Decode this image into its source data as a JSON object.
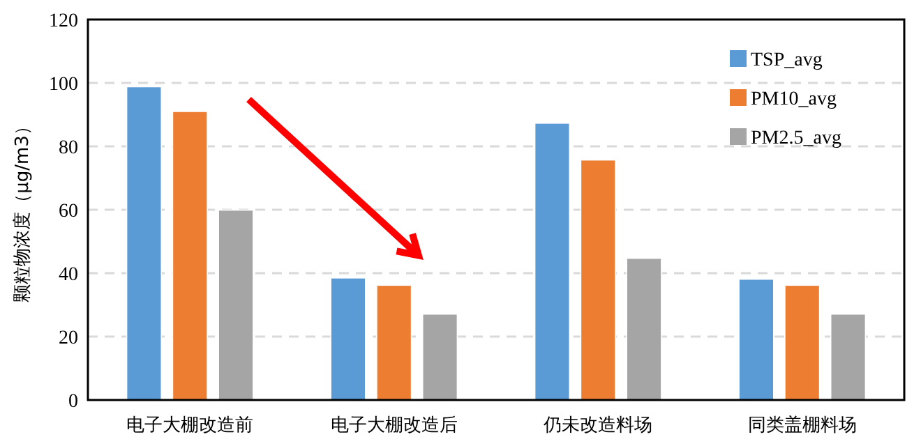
{
  "chart_data": {
    "type": "bar",
    "ylabel": "颗粒物浓度（μg/m3）",
    "categories": [
      "电子大棚改造前",
      "电子大棚改造后",
      "仍未改造料场",
      "同类盖棚料场"
    ],
    "series": [
      {
        "name": "TSP_avg",
        "color": "#5b9bd5",
        "values": [
          98.8,
          38.5,
          87.3,
          38.1
        ]
      },
      {
        "name": "PM10_avg",
        "color": "#ed7d31",
        "values": [
          91,
          36.2,
          75.7,
          36.2
        ]
      },
      {
        "name": "PM2.5_avg",
        "color": "#a5a5a5",
        "values": [
          59.9,
          27.1,
          44.7,
          27.1
        ]
      }
    ],
    "ylim": [
      0,
      120
    ],
    "yticks": [
      0,
      20,
      40,
      60,
      80,
      100,
      120
    ],
    "grid": "y",
    "legend": "top right"
  }
}
